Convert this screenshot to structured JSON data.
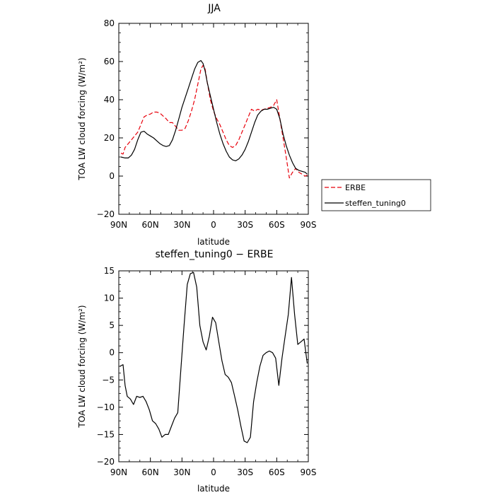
{
  "chart_data": [
    {
      "type": "line",
      "title": "JJA",
      "xlabel": "latitude",
      "ylabel": "TOA LW cloud forcing (W/m²)",
      "xlim": [
        90,
        -90
      ],
      "ylim": [
        -20,
        80
      ],
      "x_ticks": [
        90,
        60,
        30,
        0,
        -30,
        -60,
        -90
      ],
      "x_tick_labels": [
        "90N",
        "60N",
        "30N",
        "0",
        "30S",
        "60S",
        "90S"
      ],
      "y_ticks": [
        -20,
        0,
        20,
        40,
        60,
        80
      ],
      "y_tick_labels": [
        "−20",
        "0",
        "20",
        "40",
        "60",
        "80"
      ],
      "grid": false,
      "legend_placement": "right",
      "series": [
        {
          "name": "ERBE",
          "color": "#e8000b",
          "dash": "dashed",
          "x": [
            88,
            86,
            84,
            81,
            78,
            75,
            72,
            69,
            66,
            63,
            60,
            57,
            54,
            51,
            48,
            45,
            42,
            39,
            36,
            33,
            30,
            27,
            24,
            21,
            18,
            15,
            12,
            10,
            8,
            6,
            3,
            0,
            -3,
            -6,
            -9,
            -12,
            -15,
            -18,
            -21,
            -24,
            -27,
            -30,
            -33,
            -36,
            -39,
            -42,
            -45,
            -48,
            -51,
            -54,
            -57,
            -60,
            -63,
            -66,
            -69,
            -72,
            -75,
            -78,
            -81,
            -84,
            -87,
            -89
          ],
          "y": [
            12,
            11.5,
            15,
            17,
            19,
            21,
            23,
            27,
            31,
            32,
            32.5,
            33.5,
            33.5,
            33,
            31.5,
            30,
            28,
            28,
            26,
            24,
            24,
            25,
            29,
            34,
            40,
            48,
            56,
            58,
            56,
            49,
            40,
            34,
            30,
            27,
            23,
            19,
            16,
            15,
            16,
            19,
            23,
            27,
            31,
            35,
            34,
            35,
            34.5,
            35,
            35.5,
            36,
            37,
            40,
            30,
            20,
            10,
            -1,
            2,
            4,
            2,
            1,
            0,
            0.5
          ]
        },
        {
          "name": "steffen_tuning0",
          "color": "#000000",
          "dash": "solid",
          "x": [
            88,
            84,
            81,
            78,
            75,
            72,
            69,
            66,
            63,
            60,
            57,
            54,
            51,
            48,
            45,
            42,
            39,
            36,
            33,
            30,
            27,
            24,
            21,
            18,
            15,
            12,
            10,
            8,
            6,
            3,
            0,
            -3,
            -6,
            -9,
            -12,
            -15,
            -18,
            -21,
            -24,
            -27,
            -30,
            -33,
            -36,
            -39,
            -42,
            -45,
            -48,
            -51,
            -54,
            -57,
            -60,
            -63,
            -66,
            -69,
            -72,
            -75,
            -78,
            -81,
            -84,
            -87,
            -89
          ],
          "y": [
            10,
            9.5,
            9.5,
            11,
            14,
            19,
            23,
            23.5,
            22,
            21,
            20,
            18.5,
            17,
            16,
            15.5,
            16,
            19,
            24,
            30,
            36,
            41,
            46,
            51,
            56,
            59.5,
            60.5,
            59,
            55,
            49,
            42,
            35,
            28,
            22,
            17,
            13,
            10,
            8.5,
            8,
            9,
            11,
            14,
            18,
            23,
            28,
            32,
            34,
            35,
            35,
            35.5,
            36,
            35,
            30,
            22,
            16,
            11,
            7,
            4,
            3,
            2.5,
            2,
            1
          ]
        }
      ]
    },
    {
      "type": "line",
      "title": "steffen_tuning0 − ERBE",
      "xlabel": "latitude",
      "ylabel": "TOA LW cloud forcing (W/m²)",
      "xlim": [
        90,
        -90
      ],
      "ylim": [
        -20,
        15
      ],
      "x_ticks": [
        90,
        60,
        30,
        0,
        -30,
        -60,
        -90
      ],
      "x_tick_labels": [
        "90N",
        "60N",
        "30N",
        "0",
        "30S",
        "60S",
        "90S"
      ],
      "y_ticks": [
        -20,
        -15,
        -10,
        -5,
        0,
        5,
        10,
        15
      ],
      "y_tick_labels": [
        "−20",
        "−15",
        "−10",
        "−5",
        "0",
        "5",
        "10",
        "15"
      ],
      "grid": false,
      "series": [
        {
          "color": "#000000",
          "dash": "solid",
          "x": [
            89,
            86,
            84,
            82,
            79,
            76,
            73,
            70,
            67,
            64,
            61,
            58,
            55,
            52,
            49,
            46,
            43,
            40,
            37,
            34,
            31,
            28,
            25,
            22,
            19,
            16,
            13,
            10,
            7,
            4,
            1,
            -2,
            -5,
            -8,
            -11,
            -14,
            -17,
            -20,
            -23,
            -26,
            -29,
            -32,
            -35,
            -38,
            -41,
            -44,
            -47,
            -50,
            -53,
            -56,
            -59,
            -62,
            -65,
            -68,
            -71,
            -74,
            -77,
            -80,
            -83,
            -86,
            -89
          ],
          "y": [
            -2.5,
            -2.2,
            -6,
            -8,
            -8.5,
            -9.5,
            -8,
            -8.2,
            -8,
            -9,
            -10.5,
            -12.5,
            -13,
            -14,
            -15.5,
            -15,
            -15,
            -13.5,
            -12,
            -11,
            -3,
            5,
            12.5,
            14.5,
            14.7,
            12,
            5,
            2,
            0.5,
            3,
            6.5,
            5.5,
            2,
            -1.5,
            -4,
            -4.5,
            -5.5,
            -8,
            -10.5,
            -13.5,
            -16.2,
            -16.5,
            -15.5,
            -9,
            -5.5,
            -2.5,
            -0.5,
            0,
            0.3,
            0,
            -1,
            -6,
            -1,
            3,
            7,
            13.8,
            7,
            1.5,
            2,
            2.5,
            -2
          ]
        }
      ]
    }
  ]
}
